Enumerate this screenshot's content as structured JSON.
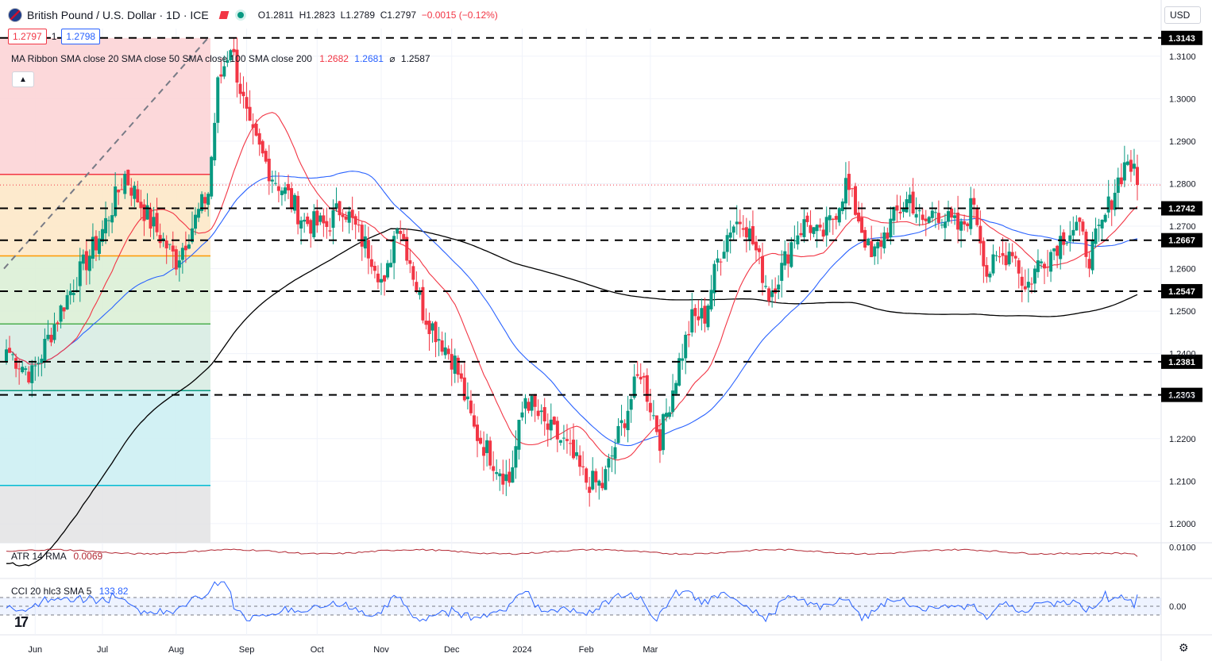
{
  "header": {
    "title": "British Pound / U.S. Dollar · 1D · ICE",
    "ohlc_open": "O1.2811",
    "ohlc_high": "H1.2823",
    "ohlc_low": "L1.2789",
    "ohlc_close": "C1.2797",
    "ohlc_change": "−0.0015 (−0.12%)"
  },
  "trade": {
    "sell": "1.2797",
    "spread": "1",
    "buy": "1.2798"
  },
  "ribbon": {
    "label": "MA Ribbon SMA close 20 SMA close 50 SMA close 100 SMA close 200",
    "v20": "1.2682",
    "v50": "1.2681",
    "v100": "⌀",
    "v200": "1.2587"
  },
  "atr": {
    "label": "ATR 14 RMA",
    "value": "0.0069"
  },
  "cci": {
    "label": "CCI 20 hlc3 SMA 5",
    "value": "133.82"
  },
  "currency": "USD",
  "colors": {
    "up": "#089981",
    "down": "#f23645",
    "sma20": "#f23645",
    "sma50": "#2962ff",
    "sma200": "#000000"
  },
  "chart_data": {
    "type": "candlestick",
    "price_axis": {
      "ylim": [
        1.1955,
        1.3165
      ],
      "ticks": [
        "1.3100",
        "1.3000",
        "1.2900",
        "1.2800",
        "1.2700",
        "1.2600",
        "1.2500",
        "1.2400",
        "1.2300",
        "1.2200",
        "1.2100",
        "1.2000"
      ]
    },
    "time_axis": {
      "labels": [
        "Jun",
        "Jul",
        "Aug",
        "Sep",
        "Oct",
        "Nov",
        "Dec",
        "2024",
        "Feb",
        "Mar"
      ]
    },
    "horizontal_levels": [
      "1.3143",
      "1.2742",
      "1.2667",
      "1.2547",
      "1.2381",
      "1.2303"
    ],
    "last_price_line": 1.2797,
    "fib_levels": [
      1.3143,
      1.2822,
      1.263,
      1.247,
      1.2313,
      1.209
    ],
    "anchors": [
      [
        0,
        1.241
      ],
      [
        8,
        1.235
      ],
      [
        18,
        1.252
      ],
      [
        30,
        1.269
      ],
      [
        37,
        1.282
      ],
      [
        45,
        1.271
      ],
      [
        53,
        1.262
      ],
      [
        63,
        1.278
      ],
      [
        66,
        1.303
      ],
      [
        70,
        1.313
      ],
      [
        76,
        1.292
      ],
      [
        83,
        1.282
      ],
      [
        88,
        1.277
      ],
      [
        93,
        1.271
      ],
      [
        100,
        1.27
      ],
      [
        105,
        1.275
      ],
      [
        110,
        1.268
      ],
      [
        115,
        1.262
      ],
      [
        118,
        1.255
      ],
      [
        122,
        1.272
      ],
      [
        126,
        1.262
      ],
      [
        130,
        1.25
      ],
      [
        140,
        1.238
      ],
      [
        146,
        1.222
      ],
      [
        152,
        1.215
      ],
      [
        157,
        1.21
      ],
      [
        162,
        1.23
      ],
      [
        168,
        1.223
      ],
      [
        174,
        1.219
      ],
      [
        181,
        1.21
      ],
      [
        186,
        1.209
      ],
      [
        192,
        1.223
      ],
      [
        198,
        1.236
      ],
      [
        204,
        1.22
      ],
      [
        210,
        1.238
      ],
      [
        214,
        1.248
      ],
      [
        218,
        1.249
      ],
      [
        222,
        1.262
      ],
      [
        226,
        1.27
      ],
      [
        230,
        1.272
      ],
      [
        234,
        1.264
      ],
      [
        238,
        1.254
      ],
      [
        242,
        1.26
      ],
      [
        246,
        1.268
      ],
      [
        250,
        1.271
      ],
      [
        254,
        1.267
      ],
      [
        258,
        1.272
      ],
      [
        262,
        1.28
      ],
      [
        266,
        1.272
      ],
      [
        270,
        1.262
      ],
      [
        274,
        1.268
      ],
      [
        278,
        1.273
      ],
      [
        282,
        1.277
      ],
      [
        286,
        1.27
      ],
      [
        290,
        1.274
      ],
      [
        294,
        1.271
      ],
      [
        298,
        1.269
      ],
      [
        302,
        1.276
      ],
      [
        306,
        1.259
      ],
      [
        310,
        1.262
      ],
      [
        314,
        1.265
      ],
      [
        318,
        1.255
      ],
      [
        322,
        1.261
      ],
      [
        326,
        1.264
      ],
      [
        330,
        1.268
      ],
      [
        334,
        1.27
      ],
      [
        338,
        1.263
      ],
      [
        342,
        1.27
      ],
      [
        346,
        1.279
      ],
      [
        350,
        1.286
      ],
      [
        352,
        1.282
      ],
      [
        353,
        1.2797
      ]
    ],
    "indicators": {
      "atr": {
        "value": 0.0069,
        "ylim": [
          0,
          0.011
        ],
        "ticks": [
          "0.0100"
        ]
      },
      "cci": {
        "value": 133.82,
        "ylim": [
          -300,
          300
        ],
        "ticks": [
          "0.00"
        ],
        "band": [
          -100,
          100
        ]
      }
    }
  }
}
